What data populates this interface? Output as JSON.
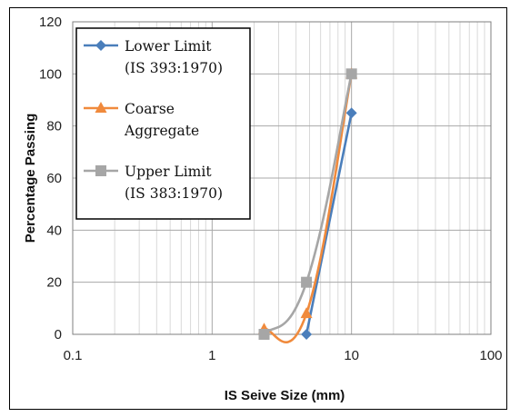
{
  "chart_data": {
    "type": "line",
    "x_scale": "log",
    "xlabel": "IS Seive Size (mm)",
    "ylabel": "Percentage Passing",
    "xlim": [
      0.1,
      100
    ],
    "ylim": [
      0,
      120
    ],
    "x_ticks": [
      "0.1",
      "1",
      "10",
      "100"
    ],
    "y_ticks": [
      "0",
      "20",
      "40",
      "60",
      "80",
      "100",
      "120"
    ],
    "grid": "major and minor (log)",
    "legend_position": "top-left inside plot",
    "series": [
      {
        "name_lines": [
          "Lower Limit",
          "(IS 393:1970)"
        ],
        "color": "#4a7ebb",
        "marker": "diamond",
        "points": [
          {
            "x": 4.75,
            "y": 0
          },
          {
            "x": 10,
            "y": 85
          }
        ]
      },
      {
        "name_lines": [
          "Coarse",
          "Aggregate"
        ],
        "color": "#f08a3c",
        "marker": "triangle",
        "points": [
          {
            "x": 2.36,
            "y": 2
          },
          {
            "x": 4.75,
            "y": 8
          },
          {
            "x": 10,
            "y": 100
          }
        ]
      },
      {
        "name_lines": [
          "Upper Limit",
          "(IS 383:1970)"
        ],
        "color": "#a6a6a6",
        "marker": "square",
        "points": [
          {
            "x": 2.36,
            "y": 0
          },
          {
            "x": 4.75,
            "y": 20
          },
          {
            "x": 10,
            "y": 100
          }
        ]
      }
    ]
  }
}
